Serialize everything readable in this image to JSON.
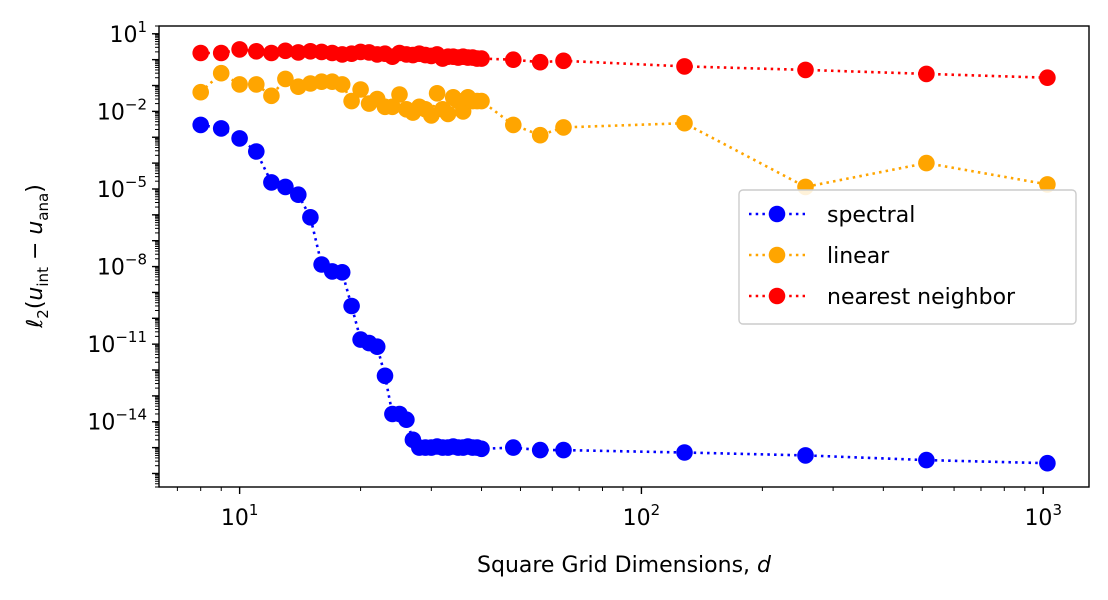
{
  "chart_data": {
    "type": "scatter",
    "xlabel": "Square Grid Dimensions, d",
    "ylabel": "ℓ2(u_int − u_ana)",
    "xscale": "log",
    "yscale": "log",
    "xlim": [
      6.3,
      1300
    ],
    "ylim": [
      3e-17,
      20
    ],
    "x_ticks": [
      {
        "value": 10,
        "base": "10",
        "exp": "1"
      },
      {
        "value": 100,
        "base": "10",
        "exp": "2"
      },
      {
        "value": 1000,
        "base": "10",
        "exp": "3"
      }
    ],
    "y_ticks": [
      {
        "value": 10,
        "base": "10",
        "exp": "1"
      },
      {
        "value": 0.01,
        "base": "10",
        "exp": "−2"
      },
      {
        "value": 1e-05,
        "base": "10",
        "exp": "−5"
      },
      {
        "value": 1e-08,
        "base": "10",
        "exp": "−8"
      },
      {
        "value": 1e-11,
        "base": "10",
        "exp": "−11"
      },
      {
        "value": 1e-14,
        "base": "10",
        "exp": "−14"
      }
    ],
    "grid": false,
    "legend_position": "center-right",
    "series": [
      {
        "name": "spectral",
        "color": "#0000ff",
        "linestyle": "dotted",
        "x": [
          8,
          9,
          10,
          11,
          12,
          13,
          14,
          15,
          16,
          17,
          18,
          19,
          20,
          21,
          22,
          23,
          24,
          25,
          26,
          27,
          28,
          29,
          30,
          31,
          32,
          33,
          34,
          35,
          36,
          37,
          38,
          39,
          40,
          48,
          56,
          64,
          128,
          256,
          512,
          1024
        ],
        "y": [
          0.003,
          0.0022,
          0.0009,
          0.00028,
          1.8e-05,
          1.2e-05,
          6e-06,
          8e-07,
          1.2e-08,
          6.5e-09,
          6e-09,
          3e-10,
          1.5e-11,
          1.1e-11,
          8e-12,
          6e-13,
          2e-14,
          2e-14,
          1.2e-14,
          2e-15,
          1e-15,
          1e-15,
          1e-15,
          1.1e-15,
          1e-15,
          1e-15,
          1.1e-15,
          1e-15,
          1e-15,
          1.1e-15,
          1e-15,
          1e-15,
          9e-16,
          1e-15,
          8e-16,
          8e-16,
          6.5e-16,
          5e-16,
          3.3e-16,
          2.5e-16
        ]
      },
      {
        "name": "linear",
        "color": "#ffa500",
        "linestyle": "dotted",
        "x": [
          8,
          9,
          10,
          11,
          12,
          13,
          14,
          15,
          16,
          17,
          18,
          19,
          20,
          21,
          22,
          23,
          24,
          25,
          26,
          27,
          28,
          29,
          30,
          31,
          32,
          33,
          34,
          35,
          36,
          37,
          38,
          39,
          40,
          48,
          56,
          64,
          128,
          256,
          512,
          1024
        ],
        "y": [
          0.055,
          0.3,
          0.11,
          0.11,
          0.04,
          0.18,
          0.09,
          0.12,
          0.14,
          0.14,
          0.11,
          0.025,
          0.07,
          0.02,
          0.03,
          0.015,
          0.015,
          0.045,
          0.012,
          0.009,
          0.015,
          0.012,
          0.007,
          0.05,
          0.012,
          0.008,
          0.035,
          0.025,
          0.01,
          0.035,
          0.025,
          0.025,
          0.025,
          0.003,
          0.0012,
          0.0024,
          0.0035,
          1.2e-05,
          0.0001,
          1.5e-05
        ]
      },
      {
        "name": "nearest neighbor",
        "color": "#ff0000",
        "linestyle": "dotted",
        "x": [
          8,
          9,
          10,
          11,
          12,
          13,
          14,
          15,
          16,
          17,
          18,
          19,
          20,
          21,
          22,
          23,
          24,
          25,
          26,
          27,
          28,
          29,
          30,
          31,
          32,
          33,
          34,
          35,
          36,
          37,
          38,
          39,
          40,
          48,
          56,
          64,
          128,
          256,
          512,
          1024
        ],
        "y": [
          1.8,
          1.8,
          2.5,
          2.1,
          1.8,
          2.2,
          1.9,
          2.1,
          2.0,
          1.8,
          1.6,
          1.7,
          2.0,
          1.9,
          1.6,
          1.7,
          1.3,
          1.8,
          1.6,
          1.5,
          1.7,
          1.5,
          1.4,
          1.6,
          1.1,
          1.3,
          1.3,
          1.2,
          1.3,
          1.2,
          1.2,
          1.1,
          1.1,
          1.0,
          0.8,
          0.9,
          0.55,
          0.4,
          0.28,
          0.2
        ]
      }
    ]
  }
}
